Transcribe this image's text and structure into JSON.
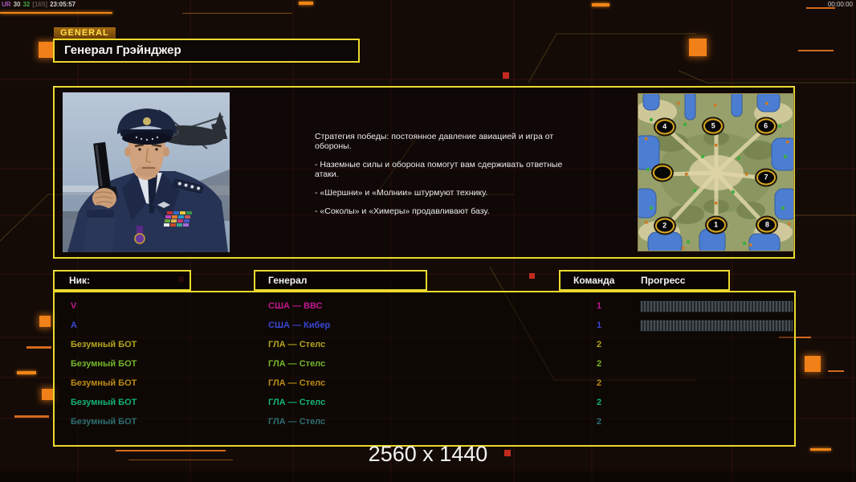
{
  "stats_overlay": {
    "segments": [
      {
        "text": "UR",
        "color": "#a85abe"
      },
      {
        "text": "30",
        "color": "#c8c8c8"
      },
      {
        "text": "32",
        "color": "#46a846"
      },
      {
        "text": "[165]",
        "color": "#5f5346"
      },
      {
        "text": "23:05:57",
        "color": "#d4d4d4"
      }
    ],
    "timer": "00:00:00"
  },
  "header": {
    "tag": "GENERAL",
    "title": "Генерал Грэйнджер"
  },
  "briefing": {
    "paragraphs": [
      "Стратегия победы: постоянное давление авиацией и игра от обороны.",
      "- Наземные силы и оборона помогут вам сдерживать ответные атаки.",
      "- «Шершни» и «Молнии» штурмуют технику.",
      "- «Соколы» и «Химеры» продавливают базу."
    ]
  },
  "minimap": {
    "markers": [
      {
        "label": "4",
        "x": 16.9,
        "y": 20.9
      },
      {
        "label": "5",
        "x": 48.3,
        "y": 20.7
      },
      {
        "label": "6",
        "x": 82.2,
        "y": 20.7
      },
      {
        "label": "",
        "x": 15.5,
        "y": 50.4
      },
      {
        "label": "7",
        "x": 82.4,
        "y": 53.4
      },
      {
        "label": "2",
        "x": 16.9,
        "y": 83.9
      },
      {
        "label": "1",
        "x": 50.1,
        "y": 83.7
      },
      {
        "label": "8",
        "x": 83.1,
        "y": 83.6
      }
    ]
  },
  "table": {
    "headers": {
      "nick": "Ник:",
      "general": "Генерал",
      "team": "Команда",
      "progress": "Прогресс"
    }
  },
  "players": [
    {
      "nick": "V",
      "general": "США — ВВС",
      "team": "1",
      "color": "#c2188e",
      "has_progress_bar": true,
      "progress_percent": 0
    },
    {
      "nick": "A",
      "general": "США — Кибер",
      "team": "1",
      "color": "#3848d4",
      "has_progress_bar": true,
      "progress_percent": 0
    },
    {
      "nick": "Безумный БОТ",
      "general": "ГЛА — Стелс",
      "team": "2",
      "color": "#b4a41e",
      "has_progress_bar": false
    },
    {
      "nick": "Безумный БОТ",
      "general": "ГЛА — Стелс",
      "team": "2",
      "color": "#74b82a",
      "has_progress_bar": false
    },
    {
      "nick": "Безумный БОТ",
      "general": "ГЛА — Стелс",
      "team": "2",
      "color": "#bd8b16",
      "has_progress_bar": false
    },
    {
      "nick": "Безумный БОТ",
      "general": "ГЛА — Стелс",
      "team": "2",
      "color": "#12b372",
      "has_progress_bar": false
    },
    {
      "nick": "Безумный БОТ",
      "general": "ГЛА — Стелс",
      "team": "2",
      "color": "#2e6e72",
      "has_progress_bar": false
    }
  ],
  "footer": {
    "resolution": "2560 x 1440"
  },
  "theme": {
    "accent_yellow": "#ecd92d",
    "accent_orange": "#f08018",
    "background": "#140b07"
  }
}
